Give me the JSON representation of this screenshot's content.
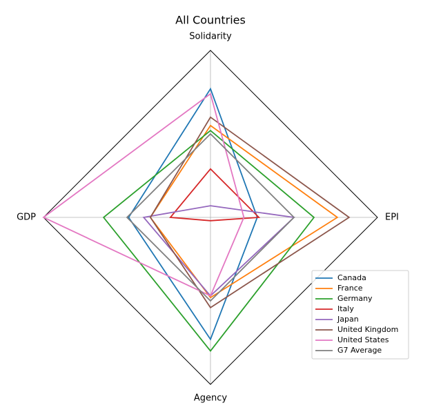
{
  "chart_data": {
    "type": "radar",
    "title": "All Countries",
    "categories": [
      "Solidarity",
      "EPI",
      "Agency",
      "GDP"
    ],
    "ylim": [
      0,
      1
    ],
    "series": [
      {
        "name": "Canada",
        "color": "#1f77b4",
        "values": [
          0.77,
          0.28,
          0.73,
          0.49
        ]
      },
      {
        "name": "France",
        "color": "#ff7f0e",
        "values": [
          0.55,
          0.76,
          0.48,
          0.36
        ]
      },
      {
        "name": "Germany",
        "color": "#2ca02c",
        "values": [
          0.52,
          0.62,
          0.8,
          0.64
        ]
      },
      {
        "name": "Italy",
        "color": "#d62728",
        "values": [
          0.29,
          0.29,
          0.02,
          0.24
        ]
      },
      {
        "name": "Japan",
        "color": "#9467bd",
        "values": [
          0.07,
          0.5,
          0.47,
          0.4
        ]
      },
      {
        "name": "United Kingdom",
        "color": "#8c564b",
        "values": [
          0.6,
          0.83,
          0.54,
          0.36
        ]
      },
      {
        "name": "United States",
        "color": "#e377c2",
        "values": [
          0.74,
          0.2,
          0.47,
          1.0
        ]
      },
      {
        "name": "G7 Average",
        "color": "#7f7f7f",
        "values": [
          0.5,
          0.5,
          0.5,
          0.5
        ]
      }
    ]
  }
}
